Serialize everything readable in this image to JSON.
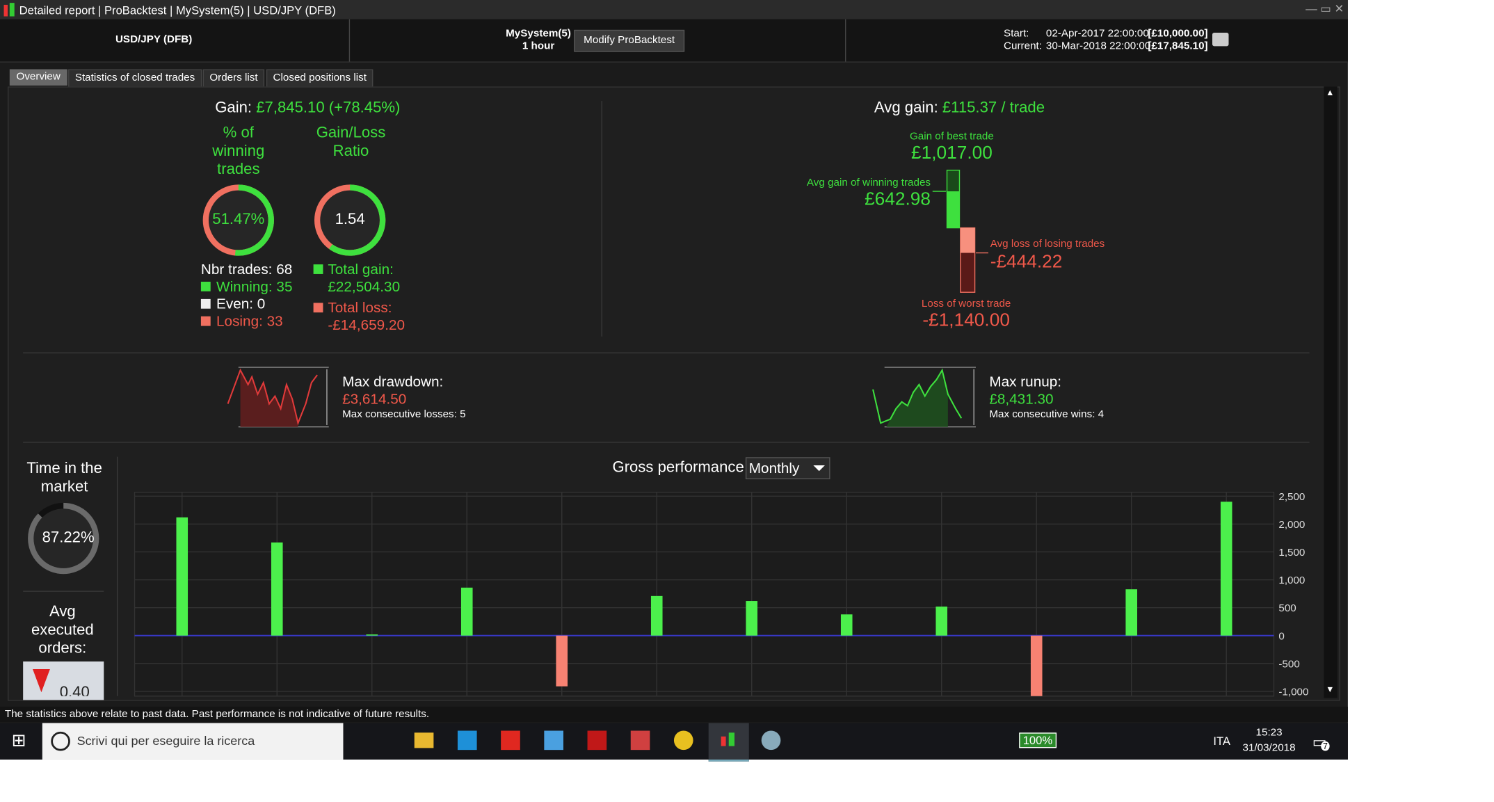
{
  "window": {
    "title_items": [
      "Detailed report",
      "ProBacktest",
      "MySystem(5)",
      "USD/JPY (DFB)"
    ]
  },
  "header": {
    "instrument": "USD/JPY (DFB)",
    "system": "MySystem(5)",
    "timeframe": "1 hour",
    "button": "Modify ProBacktest",
    "start_label": "Start:",
    "start_date": "02-Apr-2017 22:00:00",
    "start_capital": "[£10,000.00]",
    "current_label": "Current:",
    "current_date": "30-Mar-2018 22:00:00",
    "current_capital": "[£17,845.10]"
  },
  "tabs": [
    "Overview",
    "Statistics of closed trades",
    "Orders list",
    "Closed positions list"
  ],
  "overview": {
    "gain_label": "Gain:",
    "gain_value": "£7,845.10 (+78.45%)",
    "winning_pct": {
      "title": "% of winning trades",
      "value": 51.47,
      "label": "51.47%"
    },
    "gain_loss_ratio": {
      "title": "Gain/Loss Ratio",
      "label": "1.54"
    },
    "nbr_trades": "Nbr trades: 68",
    "winning": "Winning: 35",
    "even": "Even: 0",
    "losing": "Losing: 33",
    "total_gain_label": "Total gain:",
    "total_gain": "£22,504.30",
    "total_loss_label": "Total loss:",
    "total_loss": "-£14,659.20",
    "avg_gain_label": "Avg gain:",
    "avg_gain_value": "£115.37 / trade",
    "best_trade_label": "Gain of best trade",
    "best_trade": "£1,017.00",
    "avg_win_label": "Avg gain of winning trades",
    "avg_win": "£642.98",
    "avg_loss_label": "Avg loss of losing trades",
    "avg_loss": "-£444.22",
    "worst_trade_label": "Loss of worst trade",
    "worst_trade": "-£1,140.00",
    "max_drawdown_label": "Max drawdown:",
    "max_drawdown": "£3,614.50",
    "max_consec_losses": "Max consecutive losses: 5",
    "max_runup_label": "Max runup:",
    "max_runup": "£8,431.30",
    "max_consec_wins": "Max consecutive wins: 4",
    "time_in_market": {
      "title": "Time in the market",
      "value": 87.22,
      "label": "87.22%"
    },
    "avg_orders_label": "Avg executed orders:",
    "avg_orders": "0.40"
  },
  "chart_data": {
    "type": "bar",
    "title": "Gross performance",
    "period": "Monthly",
    "categories": [
      null,
      null,
      null,
      null,
      null,
      null,
      null,
      null,
      null,
      null,
      null,
      null
    ],
    "values": [
      2120,
      1670,
      20,
      860,
      -910,
      710,
      620,
      380,
      520,
      -1100,
      830,
      2400
    ],
    "colors": {
      "positive": "#4cf04c",
      "negative": "#f78272"
    },
    "ylim": [
      -1085,
      2570
    ],
    "yticks": [
      {
        "value": -1000,
        "label": "-1,000"
      },
      -500,
      0,
      500,
      {
        "value": 1000,
        "label": "1,000"
      },
      {
        "value": 1500,
        "label": "1,500"
      },
      {
        "value": 2000,
        "label": "2,000"
      },
      {
        "value": 2500,
        "label": "2,500"
      }
    ],
    "grid": true
  },
  "footer": "The statistics above relate to past data. Past performance is not indicative of future results.",
  "taskbar": {
    "search": "Scrivi qui per eseguire la ricerca",
    "battery": "100%",
    "language": "ITA",
    "time": "15:23",
    "date": "31/03/2018",
    "notifications": "7"
  }
}
